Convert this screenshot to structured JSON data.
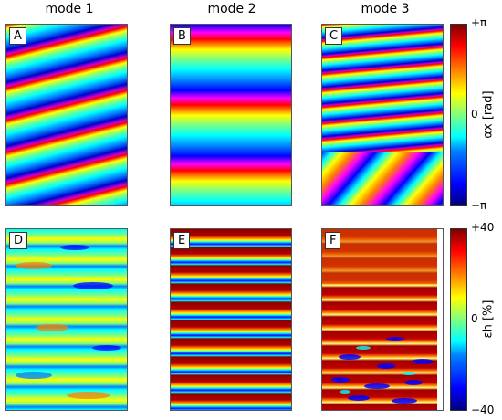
{
  "columns": [
    "mode 1",
    "mode 2",
    "mode 3"
  ],
  "panels": [
    "A",
    "B",
    "C",
    "D",
    "E",
    "F"
  ],
  "colorbar_top": {
    "label": "αx [rad]",
    "ticks": [
      "+π",
      "0",
      "−π"
    ]
  },
  "colorbar_bottom": {
    "label": "εh [%]",
    "ticks": [
      "+40",
      "0",
      "−40"
    ]
  }
}
